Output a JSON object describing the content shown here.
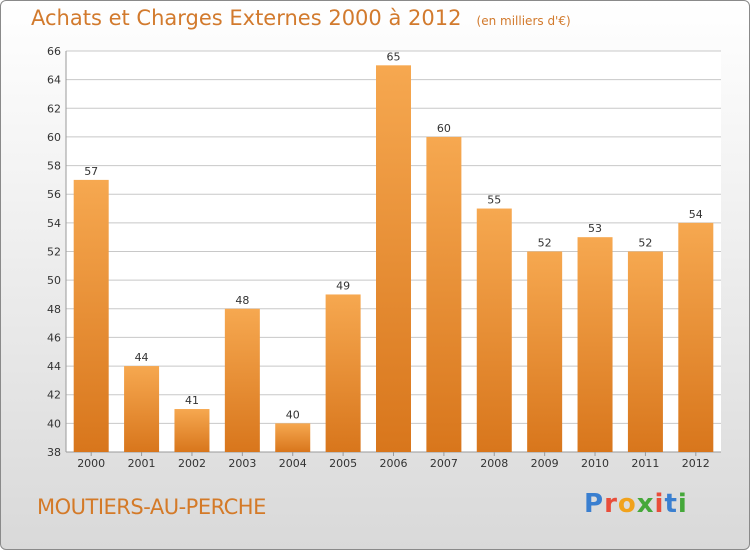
{
  "title": "Achats et Charges Externes 2000 à 2012",
  "subtitle": "(en milliers d'€)",
  "place_name": "MOUTIERS-AU-PERCHE",
  "brand": {
    "letters": [
      "P",
      "r",
      "o",
      "x",
      "i",
      "t",
      "i"
    ],
    "colors": [
      "#3a7fd0",
      "#e94d3a",
      "#f1a21c",
      "#45a83a",
      "#e94d3a",
      "#3a7fd0",
      "#45a83a"
    ]
  },
  "colors": {
    "bar_light": "#f6a850",
    "bar_dark": "#d8761c",
    "grid": "#c8c8c8",
    "text_accent": "#d27a2d"
  },
  "chart_data": {
    "type": "bar",
    "categories": [
      "2000",
      "2001",
      "2002",
      "2003",
      "2004",
      "2005",
      "2006",
      "2007",
      "2008",
      "2009",
      "2010",
      "2011",
      "2012"
    ],
    "values": [
      57,
      44,
      41,
      48,
      40,
      49,
      65,
      60,
      55,
      52,
      53,
      52,
      54
    ],
    "ylim": [
      38,
      66
    ],
    "yticks": [
      38,
      40,
      42,
      44,
      46,
      48,
      50,
      52,
      54,
      56,
      58,
      60,
      62,
      64,
      66
    ],
    "grid": true
  }
}
